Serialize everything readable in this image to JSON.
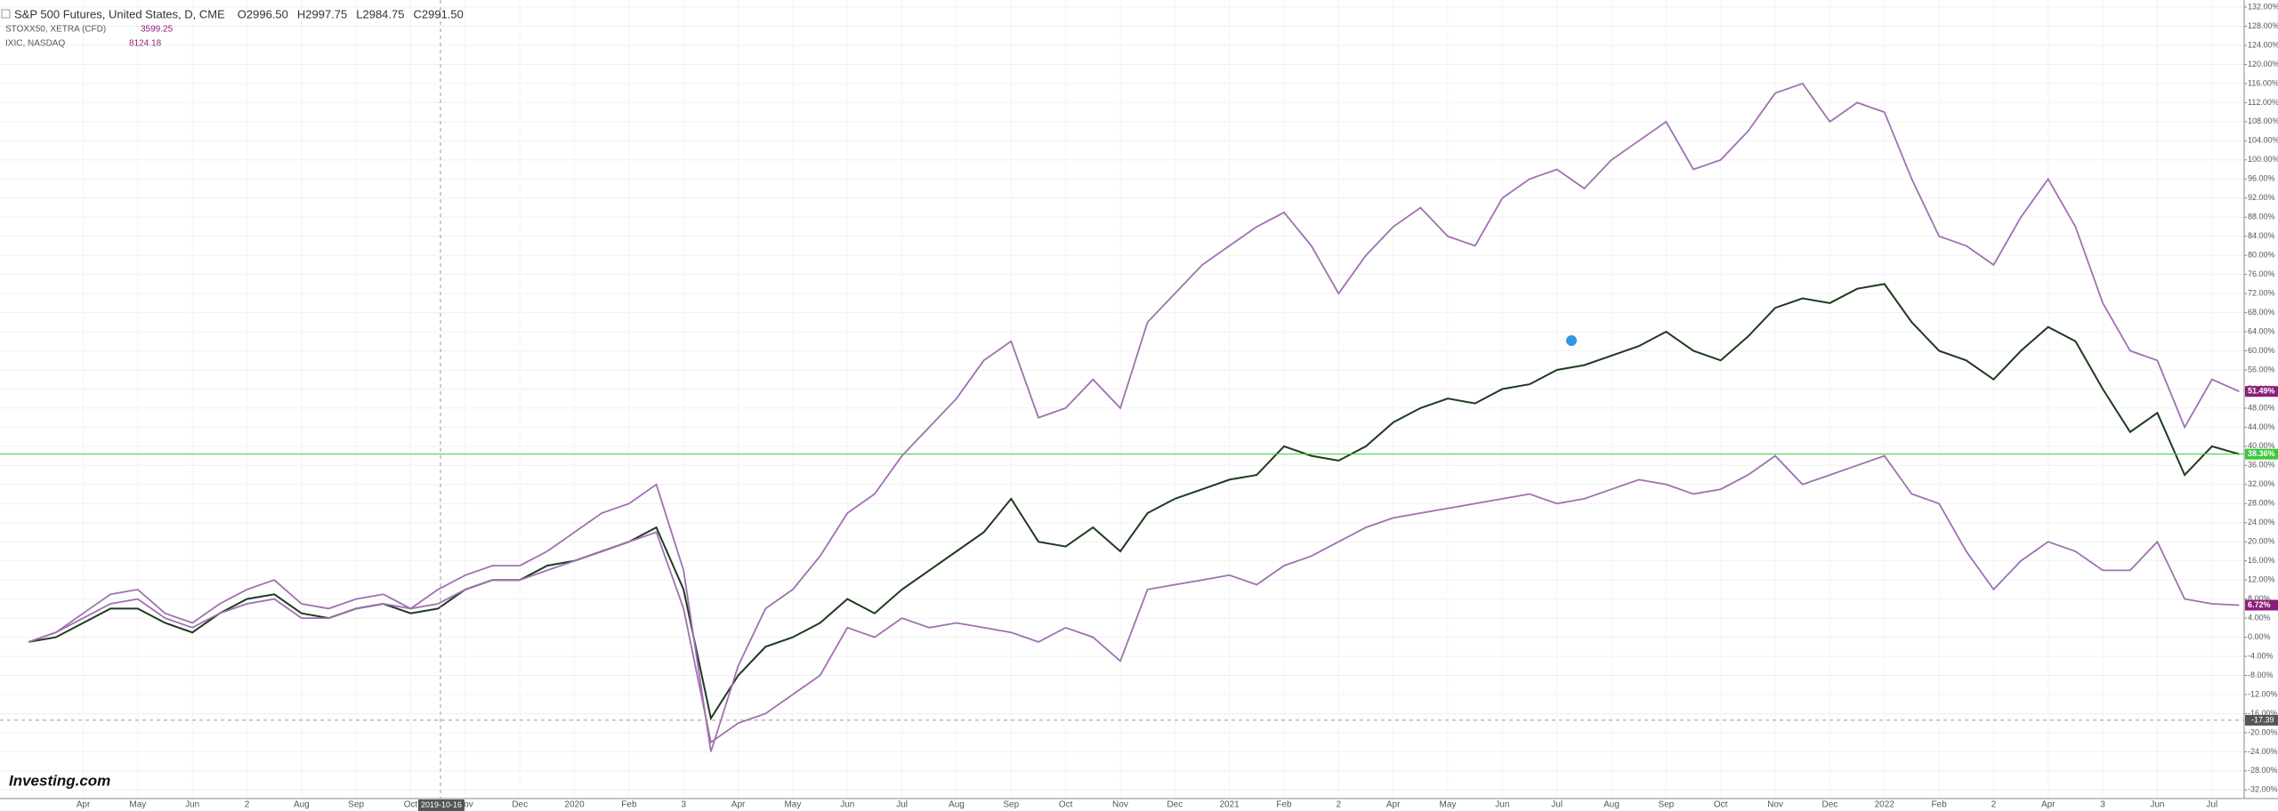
{
  "chart_data": {
    "type": "line",
    "header": {
      "ohlc": [
        "O2996.50",
        "H2997.75",
        "L2984.75",
        "C2991.50"
      ]
    },
    "brand": "Investing.com",
    "crosshair": {
      "x_label": "2019-10-16",
      "y": -17.39
    },
    "categories": [
      null,
      null,
      "Apr",
      null,
      "May",
      null,
      "Jun",
      null,
      "2",
      null,
      "Aug",
      null,
      "Sep",
      null,
      "Oct",
      null,
      "Nov",
      null,
      "Dec",
      null,
      "2020",
      null,
      "Feb",
      null,
      "3",
      null,
      "Apr",
      null,
      "May",
      null,
      "Jun",
      null,
      "Jul",
      null,
      "Aug",
      null,
      "Sep",
      null,
      "Oct",
      null,
      "Nov",
      null,
      "Dec",
      null,
      "2021",
      null,
      "Feb",
      null,
      "2",
      null,
      "Apr",
      null,
      "May",
      null,
      "Jun",
      null,
      "Jul",
      null,
      "Aug",
      null,
      "Sep",
      null,
      "Oct",
      null,
      "Nov",
      null,
      "Dec",
      null,
      "2022",
      null,
      "Feb",
      null,
      "2",
      null,
      "Apr",
      null,
      "3",
      null,
      "Jun",
      null,
      "Jul",
      null
    ],
    "series": [
      {
        "name": "S&P 500 Futures, United States, D, CME",
        "color": "#1e3a1e",
        "badge_color": "#3cc83c",
        "last_value_label": "38.36%",
        "values": [
          -1,
          0,
          3,
          6,
          6,
          3,
          1,
          5,
          8,
          9,
          5,
          4,
          6,
          7,
          5,
          6,
          10,
          12,
          12,
          15,
          16,
          18,
          20,
          23,
          10,
          -17,
          -8,
          -2,
          0,
          3,
          8,
          5,
          10,
          14,
          18,
          22,
          29,
          20,
          19,
          23,
          18,
          26,
          29,
          31,
          33,
          34,
          40,
          38,
          37,
          40,
          45,
          48,
          50,
          49,
          52,
          53,
          56,
          57,
          59,
          61,
          64,
          60,
          58,
          63,
          69,
          71,
          70,
          73,
          74,
          66,
          60,
          58,
          54,
          60,
          65,
          62,
          52,
          43,
          47,
          34,
          40,
          38.36
        ]
      },
      {
        "name": "IXIC, NASDAQ",
        "quote": 8124.18,
        "color": "#a070b0",
        "badge_color": "#8a1e7a",
        "last_value_label": "51.49%",
        "values": [
          -1,
          1,
          5,
          9,
          10,
          5,
          3,
          7,
          10,
          12,
          7,
          6,
          8,
          9,
          6,
          10,
          13,
          15,
          15,
          18,
          22,
          26,
          28,
          32,
          14,
          -24,
          -6,
          6,
          10,
          17,
          26,
          30,
          38,
          44,
          50,
          58,
          62,
          46,
          48,
          54,
          48,
          66,
          72,
          78,
          82,
          86,
          89,
          82,
          72,
          80,
          86,
          90,
          84,
          82,
          92,
          96,
          98,
          94,
          100,
          104,
          108,
          98,
          100,
          106,
          114,
          116,
          108,
          112,
          110,
          96,
          84,
          82,
          78,
          88,
          96,
          86,
          70,
          60,
          58,
          44,
          54,
          51.49
        ]
      },
      {
        "name": "STOXX50, XETRA (CFD)",
        "quote": 3599.25,
        "color": "#a070b0",
        "badge_color": "#8a1e7a",
        "last_value_label": "6.72%",
        "values": [
          -1,
          1,
          4,
          7,
          8,
          4,
          2,
          5,
          7,
          8,
          4,
          4,
          6,
          7,
          6,
          7,
          10,
          12,
          12,
          14,
          16,
          18,
          20,
          22,
          6,
          -22,
          -18,
          -16,
          -12,
          -8,
          2,
          0,
          4,
          2,
          3,
          2,
          1,
          -1,
          2,
          0,
          -5,
          10,
          11,
          12,
          13,
          11,
          15,
          17,
          20,
          23,
          25,
          26,
          27,
          28,
          29,
          30,
          28,
          29,
          31,
          33,
          32,
          30,
          31,
          34,
          38,
          32,
          34,
          36,
          38,
          30,
          28,
          18,
          10,
          16,
          20,
          18,
          14,
          14,
          20,
          8,
          7,
          6.72
        ]
      }
    ],
    "ylim": [
      -33.8,
      133.5
    ],
    "yticks": [
      {
        "value": -32,
        "label": "-32.00%"
      },
      {
        "value": -28,
        "label": "-28.00%"
      },
      {
        "value": -24,
        "label": "-24.00%"
      },
      {
        "value": -20,
        "label": "-20.00%"
      },
      {
        "value": -16,
        "label": "-16.00%"
      },
      {
        "value": -12,
        "label": "-12.00%"
      },
      {
        "value": -8,
        "label": "-8.00%"
      },
      {
        "value": -4,
        "label": "-4.00%"
      },
      {
        "value": 0,
        "label": "0.00%"
      },
      {
        "value": 4,
        "label": "4.00%"
      },
      {
        "value": 8,
        "label": "8.00%"
      },
      {
        "value": 12,
        "label": "12.00%"
      },
      {
        "value": 16,
        "label": "16.00%"
      },
      {
        "value": 20,
        "label": "20.00%"
      },
      {
        "value": 24,
        "label": "24.00%"
      },
      {
        "value": 28,
        "label": "28.00%"
      },
      {
        "value": 32,
        "label": "32.00%"
      },
      {
        "value": 36,
        "label": "36.00%"
      },
      {
        "value": 40,
        "label": "40.00%"
      },
      {
        "value": 44,
        "label": "44.00%"
      },
      {
        "value": 48,
        "label": "48.00%"
      },
      {
        "value": 52,
        "label": "52.00%"
      },
      {
        "value": 56,
        "label": "56.00%"
      },
      {
        "value": 60,
        "label": "60.00%"
      },
      {
        "value": 64,
        "label": "64.00%"
      },
      {
        "value": 68,
        "label": "68.00%"
      },
      {
        "value": 72,
        "label": "72.00%"
      },
      {
        "value": 76,
        "label": "76.00%"
      },
      {
        "value": 80,
        "label": "80.00%"
      },
      {
        "value": 84,
        "label": "84.00%"
      },
      {
        "value": 88,
        "label": "88.00%"
      },
      {
        "value": 92,
        "label": "92.00%"
      },
      {
        "value": 96,
        "label": "96.00%"
      },
      {
        "value": 100,
        "label": "100.00%"
      },
      {
        "value": 104,
        "label": "104.00%"
      },
      {
        "value": 108,
        "label": "108.00%"
      },
      {
        "value": 112,
        "label": "112.00%"
      },
      {
        "value": 116,
        "label": "116.00%"
      },
      {
        "value": 120,
        "label": "120.00%"
      },
      {
        "value": 124,
        "label": "124.00%"
      },
      {
        "value": 128,
        "label": "128.00%"
      },
      {
        "value": 132,
        "label": "132.00%"
      }
    ],
    "grid": true
  }
}
